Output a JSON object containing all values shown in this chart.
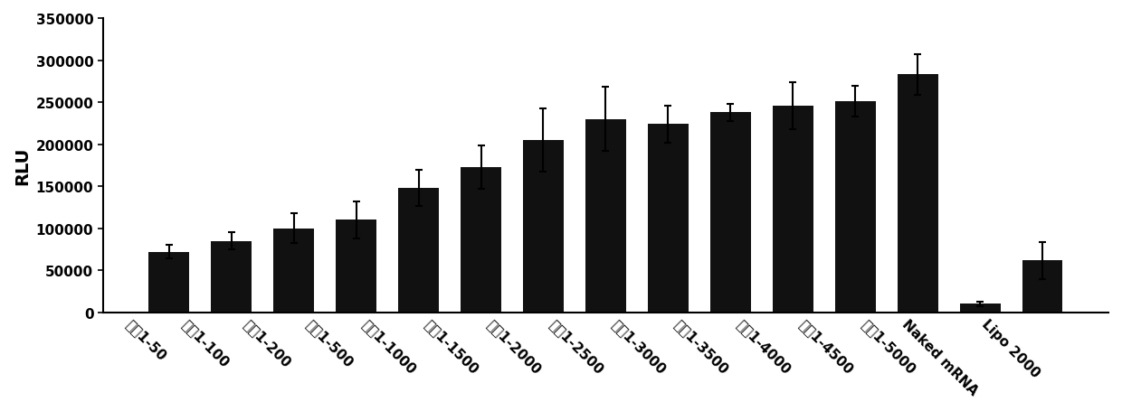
{
  "categories": [
    "处方1-50",
    "处方1-100",
    "处方1-200",
    "处方1-500",
    "处方1-1000",
    "处方1-1500",
    "处方1-2000",
    "处方1-2500",
    "处方1-3000",
    "处方1-3500",
    "处方1-4000",
    "处方1-4500",
    "处方1-5000",
    "Naked mRNA",
    "Lipo 2000"
  ],
  "values": [
    72000,
    85000,
    100000,
    110000,
    148000,
    173000,
    205000,
    230000,
    224000,
    238000,
    246000,
    251000,
    283000,
    10000,
    62000
  ],
  "errors": [
    8000,
    10000,
    18000,
    22000,
    22000,
    26000,
    38000,
    38000,
    22000,
    10000,
    28000,
    18000,
    24000,
    3000,
    22000
  ],
  "bar_color": "#111111",
  "ylabel": "RLU",
  "ylim": [
    0,
    350000
  ],
  "yticks": [
    0,
    50000,
    100000,
    150000,
    200000,
    250000,
    300000,
    350000
  ],
  "ytick_labels": [
    "0",
    "50000",
    "100000",
    "150000",
    "200000",
    "250000",
    "300000",
    "350000"
  ],
  "background_color": "#ffffff",
  "bar_width": 0.65,
  "ylabel_fontsize": 14,
  "tick_fontsize": 11,
  "xtick_rotation": -45,
  "xtick_ha": "right"
}
